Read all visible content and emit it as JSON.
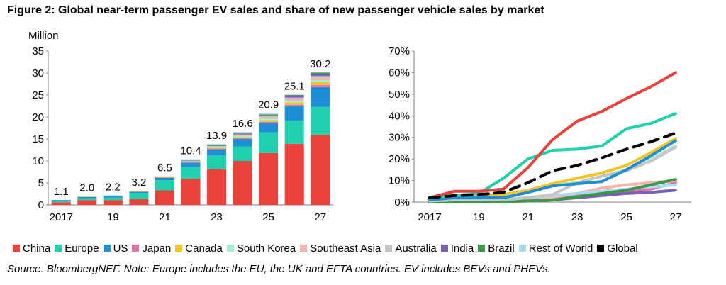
{
  "figure": {
    "title": "Figure 2: Global near-term passenger EV sales and share of new passenger vehicle sales by market",
    "source": "Source: BloombergNEF. Note: Europe includes the EU, the UK and EFTA countries. EV includes BEVs and PHEVs."
  },
  "legend": [
    {
      "name": "China",
      "color": "#e8423a"
    },
    {
      "name": "Europe",
      "color": "#1fd0ac"
    },
    {
      "name": "US",
      "color": "#1d8fd6"
    },
    {
      "name": "Japan",
      "color": "#e86fa5"
    },
    {
      "name": "Canada",
      "color": "#f5c423"
    },
    {
      "name": "South Korea",
      "color": "#a8ecd8"
    },
    {
      "name": "Southeast Asia",
      "color": "#f7b3ae"
    },
    {
      "name": "Australia",
      "color": "#c4c4c4"
    },
    {
      "name": "India",
      "color": "#7a5fb5"
    },
    {
      "name": "Brazil",
      "color": "#3a9a4a"
    },
    {
      "name": "Rest of World",
      "color": "#a9d8ef"
    },
    {
      "name": "Global",
      "color": "#000000"
    }
  ],
  "chart_data": [
    {
      "type": "bar",
      "stacked": true,
      "ylabel": "Million",
      "ylim": [
        0,
        35
      ],
      "yticks": [
        "0",
        "5",
        "10",
        "15",
        "20",
        "25",
        "30",
        "35"
      ],
      "categories": [
        "2017",
        "2018",
        "2019",
        "2020",
        "2021",
        "2022",
        "2023",
        "2024",
        "2025",
        "2026",
        "2027"
      ],
      "xtick_labels": [
        "2017",
        "",
        "19",
        "",
        "21",
        "",
        "23",
        "",
        "25",
        "",
        "27"
      ],
      "totals": [
        "1.1",
        "2.0",
        "2.2",
        "3.2",
        "6.5",
        "10.4",
        "13.9",
        "16.6",
        "20.9",
        "25.1",
        "30.2"
      ],
      "series": [
        {
          "name": "China",
          "values": [
            0.6,
            1.1,
            1.1,
            1.3,
            3.3,
            6.0,
            8.1,
            10.0,
            11.8,
            13.9,
            16.0
          ]
        },
        {
          "name": "Europe",
          "values": [
            0.3,
            0.4,
            0.6,
            1.4,
            2.3,
            2.6,
            3.2,
            3.3,
            4.7,
            5.3,
            6.3
          ]
        },
        {
          "name": "US",
          "values": [
            0.2,
            0.35,
            0.3,
            0.3,
            0.6,
            1.0,
            1.4,
            1.7,
            2.2,
            3.3,
            4.5
          ]
        },
        {
          "name": "Japan",
          "values": [
            0.0,
            0.02,
            0.02,
            0.02,
            0.03,
            0.06,
            0.1,
            0.15,
            0.2,
            0.3,
            0.5
          ]
        },
        {
          "name": "Canada",
          "values": [
            0.0,
            0.02,
            0.05,
            0.05,
            0.08,
            0.1,
            0.2,
            0.3,
            0.4,
            0.5,
            0.6
          ]
        },
        {
          "name": "South Korea",
          "values": [
            0.0,
            0.03,
            0.04,
            0.05,
            0.1,
            0.15,
            0.2,
            0.25,
            0.3,
            0.4,
            0.5
          ]
        },
        {
          "name": "Southeast Asia",
          "values": [
            0.0,
            0.0,
            0.0,
            0.0,
            0.01,
            0.06,
            0.1,
            0.2,
            0.3,
            0.4,
            0.5
          ]
        },
        {
          "name": "Australia",
          "values": [
            0.0,
            0.0,
            0.01,
            0.01,
            0.02,
            0.05,
            0.1,
            0.15,
            0.25,
            0.3,
            0.4
          ]
        },
        {
          "name": "India",
          "values": [
            0.0,
            0.0,
            0.0,
            0.0,
            0.01,
            0.05,
            0.1,
            0.2,
            0.3,
            0.4,
            0.5
          ]
        },
        {
          "name": "Brazil",
          "values": [
            0.0,
            0.0,
            0.0,
            0.0,
            0.01,
            0.03,
            0.05,
            0.1,
            0.15,
            0.2,
            0.3
          ]
        },
        {
          "name": "Rest of World",
          "values": [
            0.0,
            0.08,
            0.08,
            0.07,
            0.04,
            0.3,
            0.35,
            0.25,
            0.3,
            0.1,
            0.1
          ]
        }
      ]
    },
    {
      "type": "line",
      "ylim": [
        0,
        70
      ],
      "yticks": [
        "0%",
        "10%",
        "20%",
        "30%",
        "40%",
        "50%",
        "60%",
        "70%"
      ],
      "x": [
        "2017",
        "2018",
        "2019",
        "2020",
        "2021",
        "2022",
        "2023",
        "2024",
        "2025",
        "2026",
        "2027"
      ],
      "xtick_labels": [
        "2017",
        "",
        "19",
        "",
        "21",
        "",
        "23",
        "",
        "25",
        "",
        "27"
      ],
      "series": [
        {
          "name": "China",
          "values": [
            2,
            5,
            5,
            6,
            16,
            29,
            37.5,
            42,
            48,
            53.5,
            60
          ]
        },
        {
          "name": "Europe",
          "values": [
            2,
            3,
            4,
            11,
            20,
            24,
            24.5,
            26,
            34,
            36.5,
            41
          ]
        },
        {
          "name": "US",
          "values": [
            1,
            2,
            2,
            2,
            4.5,
            7.5,
            8.5,
            9.5,
            15,
            21.5,
            28.5
          ]
        },
        {
          "name": "Japan",
          "values": [
            0.5,
            1,
            1,
            1,
            1,
            2,
            3,
            4,
            5,
            6,
            9
          ]
        },
        {
          "name": "Canada",
          "values": [
            1,
            2.5,
            3,
            3.5,
            5.5,
            8.5,
            11,
            13.5,
            17,
            23,
            29.5
          ]
        },
        {
          "name": "South Korea",
          "values": [
            1,
            2,
            2,
            2,
            5,
            8,
            9,
            12,
            15,
            20,
            26
          ]
        },
        {
          "name": "Southeast Asia",
          "values": [
            0,
            0,
            0,
            0,
            0.5,
            2,
            4,
            6.5,
            8,
            9,
            10
          ]
        },
        {
          "name": "Australia",
          "values": [
            0.5,
            1,
            1,
            1,
            2,
            3.5,
            9,
            12,
            14.5,
            19,
            25.5
          ]
        },
        {
          "name": "India",
          "values": [
            0,
            0,
            0,
            0.3,
            0.5,
            1,
            2,
            3,
            4,
            4.5,
            5.5
          ]
        },
        {
          "name": "Brazil",
          "values": [
            0,
            0,
            0,
            0.3,
            0.5,
            1,
            2.5,
            4,
            5.5,
            8,
            10.5
          ]
        },
        {
          "name": "Rest of World",
          "values": [
            1,
            1.5,
            1.5,
            1.5,
            2,
            3,
            4,
            5,
            6,
            7,
            8
          ]
        },
        {
          "name": "Global",
          "values": [
            2,
            3,
            3.5,
            4.5,
            9,
            14.5,
            17,
            20.5,
            24.5,
            28,
            32
          ]
        }
      ]
    }
  ]
}
